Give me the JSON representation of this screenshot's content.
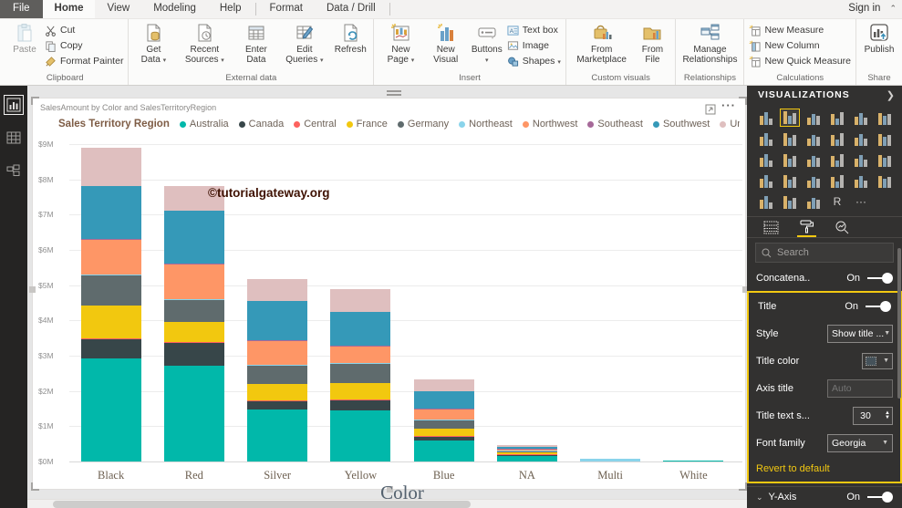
{
  "titlebar": {
    "tabs": [
      "File",
      "Home",
      "View",
      "Modeling",
      "Help",
      "Format",
      "Data / Drill"
    ],
    "selected_tab": "Home",
    "sign_in": "Sign in"
  },
  "ribbon": {
    "groups": {
      "clipboard": {
        "name": "Clipboard",
        "paste": "Paste",
        "cut": "Cut",
        "copy": "Copy",
        "format_painter": "Format Painter"
      },
      "external_data": {
        "name": "External data",
        "get_data": "Get Data",
        "recent_sources": "Recent Sources",
        "enter_data": "Enter Data",
        "edit_queries": "Edit Queries",
        "refresh": "Refresh"
      },
      "insert": {
        "name": "Insert",
        "new_page": "New Page",
        "new_visual": "New Visual",
        "buttons": "Buttons",
        "text_box": "Text box",
        "image": "Image",
        "shapes": "Shapes"
      },
      "custom_visuals": {
        "name": "Custom visuals",
        "from_marketplace": "From Marketplace",
        "from_file": "From File"
      },
      "relationships": {
        "name": "Relationships",
        "manage_relationships": "Manage Relationships"
      },
      "calculations": {
        "name": "Calculations",
        "new_measure": "New Measure",
        "new_column": "New Column",
        "new_quick_measure": "New Quick Measure"
      },
      "share": {
        "name": "Share",
        "publish": "Publish"
      }
    }
  },
  "left_rail": {
    "items": [
      "report-view",
      "data-view",
      "model-view"
    ],
    "selected": "report-view"
  },
  "visual": {
    "header_title": "SalesAmount by Color and SalesTerritoryRegion",
    "watermark": "©tutorialgateway.org"
  },
  "chart_data": {
    "type": "bar",
    "stacked": true,
    "title": "SalesAmount by Color and SalesTerritoryRegion",
    "legend_title": "Sales Territory Region",
    "legend_position": "top",
    "xlabel": "Color",
    "ylabel": "",
    "grid": true,
    "categories": [
      "Black",
      "Red",
      "Silver",
      "Yellow",
      "Blue",
      "NA",
      "Multi",
      "White"
    ],
    "y_ticks": [
      "$0M",
      "$1M",
      "$2M",
      "$3M",
      "$4M",
      "$5M",
      "$6M",
      "$7M",
      "$8M",
      "$9M"
    ],
    "ylim_millions": [
      0,
      9
    ],
    "values_unit": "millions of dollars (SalesAmount)",
    "series": [
      {
        "name": "Australia",
        "color": "#01B8AA",
        "values": [
          2.93,
          2.71,
          1.48,
          1.45,
          0.59,
          0.15,
          0.0,
          0.02
        ]
      },
      {
        "name": "Canada",
        "color": "#374649",
        "values": [
          0.54,
          0.65,
          0.24,
          0.3,
          0.12,
          0.04,
          0.0,
          0.0
        ]
      },
      {
        "name": "Central",
        "color": "#FD625E",
        "values": [
          0.02,
          0.02,
          0.01,
          0.01,
          0.01,
          0.01,
          0.0,
          0.0
        ]
      },
      {
        "name": "France",
        "color": "#F2C80F",
        "values": [
          0.93,
          0.57,
          0.48,
          0.46,
          0.22,
          0.05,
          0.0,
          0.0
        ]
      },
      {
        "name": "Germany",
        "color": "#5F6B6D",
        "values": [
          0.85,
          0.64,
          0.51,
          0.57,
          0.23,
          0.04,
          0.0,
          0.0
        ]
      },
      {
        "name": "Northeast",
        "color": "#8AD4EB",
        "values": [
          0.02,
          0.02,
          0.01,
          0.01,
          0.01,
          0.02,
          0.08,
          0.0
        ]
      },
      {
        "name": "Northwest",
        "color": "#FE9666",
        "values": [
          1.0,
          0.99,
          0.71,
          0.47,
          0.32,
          0.05,
          0.0,
          0.0
        ]
      },
      {
        "name": "Southeast",
        "color": "#A66999",
        "values": [
          0.02,
          0.02,
          0.01,
          0.01,
          0.01,
          0.01,
          0.0,
          0.0
        ]
      },
      {
        "name": "Southwest",
        "color": "#3599B8",
        "values": [
          1.5,
          1.49,
          1.1,
          0.97,
          0.48,
          0.04,
          0.0,
          0.0
        ]
      },
      {
        "name": "United Kingdom",
        "color": "#DFBFBF",
        "values": [
          1.09,
          0.69,
          0.61,
          0.63,
          0.35,
          0.06,
          0.0,
          0.0
        ]
      }
    ]
  },
  "panel": {
    "header": "VISUALIZATIONS",
    "search_placeholder": "Search",
    "visual_types": [
      "stacked-bar",
      "stacked-column",
      "clustered-bar",
      "clustered-column",
      "100-stacked-bar",
      "100-stacked-column",
      "line",
      "area",
      "stacked-area",
      "line-clustered-column",
      "line-stacked-column",
      "ribbon",
      "waterfall",
      "scatter",
      "pie",
      "donut",
      "treemap",
      "map",
      "filled-map",
      "funnel",
      "gauge",
      "card",
      "multi-row-card",
      "kpi",
      "slicer",
      "table",
      "matrix",
      "r-script",
      "more"
    ],
    "selected_visual_type": "stacked-column",
    "tabs": [
      "fields",
      "format",
      "analytics"
    ],
    "selected_panel_tab": "format",
    "concatenate": {
      "label": "Concatena..",
      "state": "On"
    },
    "title_section": {
      "title": {
        "label": "Title",
        "state": "On"
      },
      "style": {
        "label": "Style",
        "value": "Show title ..."
      },
      "title_color": {
        "label": "Title color"
      },
      "axis_title": {
        "label": "Axis title",
        "placeholder": "Auto"
      },
      "title_text_size": {
        "label": "Title text s...",
        "value": "30"
      },
      "font_family": {
        "label": "Font family",
        "value": "Georgia"
      },
      "revert": "Revert to default"
    },
    "y_axis": {
      "label": "Y-Axis",
      "state": "On"
    },
    "accent_color": "#F2C811"
  }
}
